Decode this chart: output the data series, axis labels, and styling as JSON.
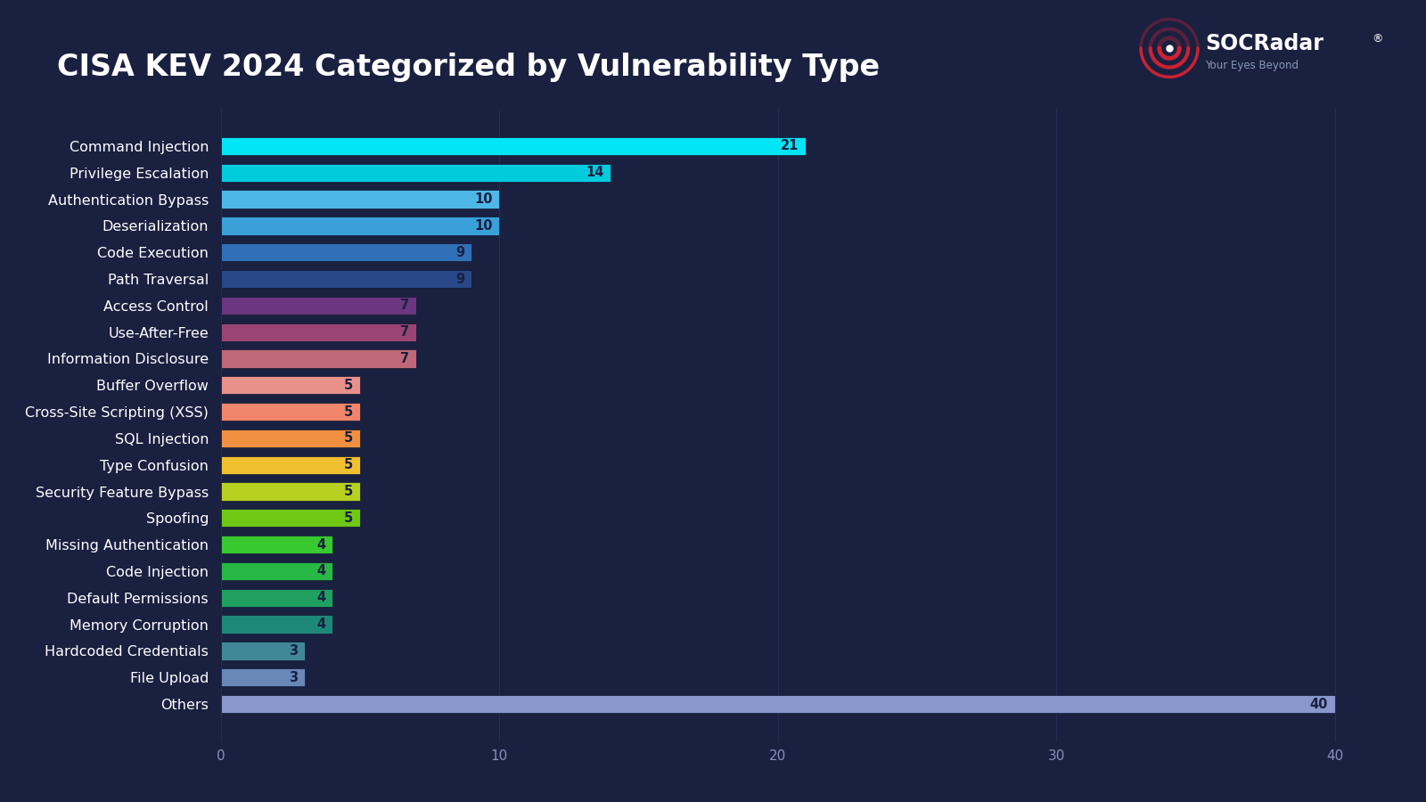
{
  "title": "CISA KEV 2024 Categorized by Vulnerability Type",
  "background_color": "#1a2040",
  "categories": [
    "Command Injection",
    "Privilege Escalation",
    "Authentication Bypass",
    "Deserialization",
    "Code Execution",
    "Path Traversal",
    "Access Control",
    "Use-After-Free",
    "Information Disclosure",
    "Buffer Overflow",
    "Cross-Site Scripting (XSS)",
    "SQL Injection",
    "Type Confusion",
    "Security Feature Bypass",
    "Spoofing",
    "Missing Authentication",
    "Code Injection",
    "Default Permissions",
    "Memory Corruption",
    "Hardcoded Credentials",
    "File Upload",
    "Others"
  ],
  "values": [
    21,
    14,
    10,
    10,
    9,
    9,
    7,
    7,
    7,
    5,
    5,
    5,
    5,
    5,
    5,
    4,
    4,
    4,
    4,
    3,
    3,
    40
  ],
  "bar_colors": [
    "#00e5f5",
    "#00ccdd",
    "#4db8e8",
    "#3aa0d8",
    "#3070b8",
    "#284888",
    "#6b3580",
    "#9b4575",
    "#c06878",
    "#e8908a",
    "#f0856a",
    "#f09040",
    "#f0c030",
    "#b8d020",
    "#70c815",
    "#38c830",
    "#28b845",
    "#20a060",
    "#1e8878",
    "#408898",
    "#6888b8",
    "#8898cc"
  ],
  "label_color": "#ffffff",
  "value_label_color_dark": "#1a2040",
  "value_label_color_light": "#ffffff",
  "axis_label_color": "#8890bb",
  "grid_color": "#252d55",
  "xlim": [
    0,
    42
  ],
  "xticks": [
    0,
    10,
    20,
    30,
    40
  ],
  "title_fontsize": 24,
  "label_fontsize": 11.5,
  "value_fontsize": 10.5,
  "bar_height": 0.68
}
